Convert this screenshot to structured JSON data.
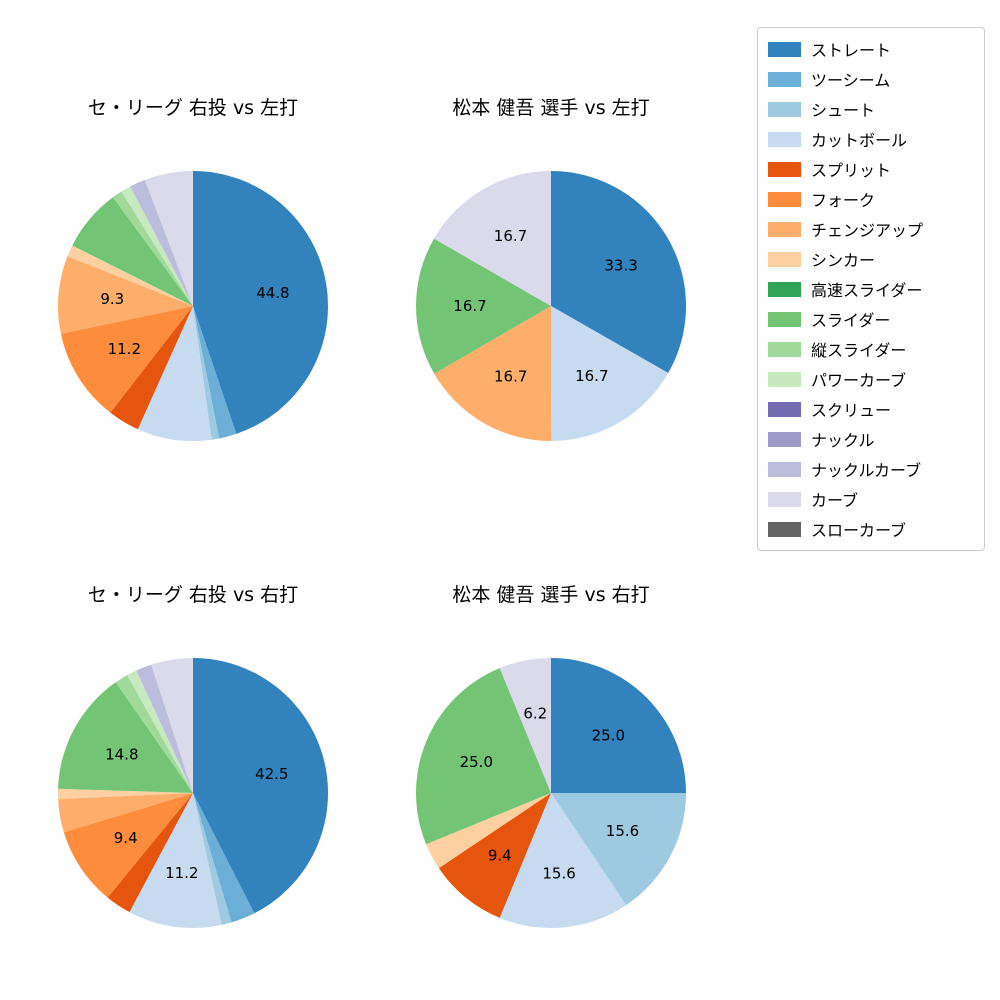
{
  "legend": {
    "position": "right",
    "entries": [
      {
        "label": "ストレート",
        "color": "#3182bd"
      },
      {
        "label": "ツーシーム",
        "color": "#6baed6"
      },
      {
        "label": "シュート",
        "color": "#9ecae1"
      },
      {
        "label": "カットボール",
        "color": "#c6dbef"
      },
      {
        "label": "スプリット",
        "color": "#e6550d"
      },
      {
        "label": "フォーク",
        "color": "#fd8d3c"
      },
      {
        "label": "チェンジアップ",
        "color": "#fdae6b"
      },
      {
        "label": "シンカー",
        "color": "#fdd0a2"
      },
      {
        "label": "高速スライダー",
        "color": "#31a354"
      },
      {
        "label": "スライダー",
        "color": "#74c476"
      },
      {
        "label": "縦スライダー",
        "color": "#a1d99b"
      },
      {
        "label": "パワーカーブ",
        "color": "#c7e9c0"
      },
      {
        "label": "スクリュー",
        "color": "#756bb1"
      },
      {
        "label": "ナックル",
        "color": "#9e9ac8"
      },
      {
        "label": "ナックルカーブ",
        "color": "#bcbddc"
      },
      {
        "label": "カーブ",
        "color": "#dadaeb"
      },
      {
        "label": "スローカーブ",
        "color": "#636363"
      }
    ]
  },
  "chart_data": [
    {
      "type": "pie",
      "title": "セ・リーグ 右投 vs 左打",
      "start_angle": "top",
      "direction": "clockwise",
      "slices": [
        {
          "name": "ストレート",
          "value": 44.8,
          "label": "44.8"
        },
        {
          "name": "ツーシーム",
          "value": 2.1,
          "label": ""
        },
        {
          "name": "シュート",
          "value": 0.9,
          "label": ""
        },
        {
          "name": "カットボール",
          "value": 8.9,
          "label": ""
        },
        {
          "name": "スプリット",
          "value": 3.8,
          "label": ""
        },
        {
          "name": "フォーク",
          "value": 11.2,
          "label": "11.2"
        },
        {
          "name": "チェンジアップ",
          "value": 9.3,
          "label": "9.3"
        },
        {
          "name": "シンカー",
          "value": 1.4,
          "label": ""
        },
        {
          "name": "スライダー",
          "value": 7.5,
          "label": ""
        },
        {
          "name": "縦スライダー",
          "value": 1.2,
          "label": ""
        },
        {
          "name": "パワーカーブ",
          "value": 1.2,
          "label": ""
        },
        {
          "name": "ナックルカーブ",
          "value": 1.9,
          "label": ""
        },
        {
          "name": "カーブ",
          "value": 5.8,
          "label": ""
        }
      ]
    },
    {
      "type": "pie",
      "title": "松本 健吾 選手 vs 左打",
      "start_angle": "top",
      "direction": "clockwise",
      "slices": [
        {
          "name": "ストレート",
          "value": 33.3,
          "label": "33.3"
        },
        {
          "name": "カットボール",
          "value": 16.7,
          "label": "16.7"
        },
        {
          "name": "チェンジアップ",
          "value": 16.7,
          "label": "16.7"
        },
        {
          "name": "スライダー",
          "value": 16.7,
          "label": "16.7"
        },
        {
          "name": "カーブ",
          "value": 16.7,
          "label": "16.7"
        }
      ]
    },
    {
      "type": "pie",
      "title": "セ・リーグ 右投 vs 右打",
      "start_angle": "top",
      "direction": "clockwise",
      "slices": [
        {
          "name": "ストレート",
          "value": 42.5,
          "label": "42.5"
        },
        {
          "name": "ツーシーム",
          "value": 2.9,
          "label": ""
        },
        {
          "name": "シュート",
          "value": 1.2,
          "label": ""
        },
        {
          "name": "カットボール",
          "value": 11.2,
          "label": "11.2"
        },
        {
          "name": "スプリット",
          "value": 3.1,
          "label": ""
        },
        {
          "name": "フォーク",
          "value": 9.4,
          "label": "9.4"
        },
        {
          "name": "チェンジアップ",
          "value": 4.0,
          "label": ""
        },
        {
          "name": "シンカー",
          "value": 1.2,
          "label": ""
        },
        {
          "name": "スライダー",
          "value": 14.8,
          "label": "14.8"
        },
        {
          "name": "縦スライダー",
          "value": 1.6,
          "label": ""
        },
        {
          "name": "パワーカーブ",
          "value": 1.2,
          "label": ""
        },
        {
          "name": "ナックルカーブ",
          "value": 1.9,
          "label": ""
        },
        {
          "name": "カーブ",
          "value": 5.0,
          "label": ""
        }
      ]
    },
    {
      "type": "pie",
      "title": "松本 健吾 選手 vs 右打",
      "start_angle": "top",
      "direction": "clockwise",
      "slices": [
        {
          "name": "ストレート",
          "value": 25.0,
          "label": "25.0"
        },
        {
          "name": "シュート",
          "value": 15.6,
          "label": "15.6"
        },
        {
          "name": "カットボール",
          "value": 15.6,
          "label": "15.6"
        },
        {
          "name": "スプリット",
          "value": 9.4,
          "label": "9.4"
        },
        {
          "name": "シンカー",
          "value": 3.2,
          "label": ""
        },
        {
          "name": "スライダー",
          "value": 25.0,
          "label": "25.0"
        },
        {
          "name": "カーブ",
          "value": 6.2,
          "label": "6.2"
        }
      ]
    }
  ]
}
